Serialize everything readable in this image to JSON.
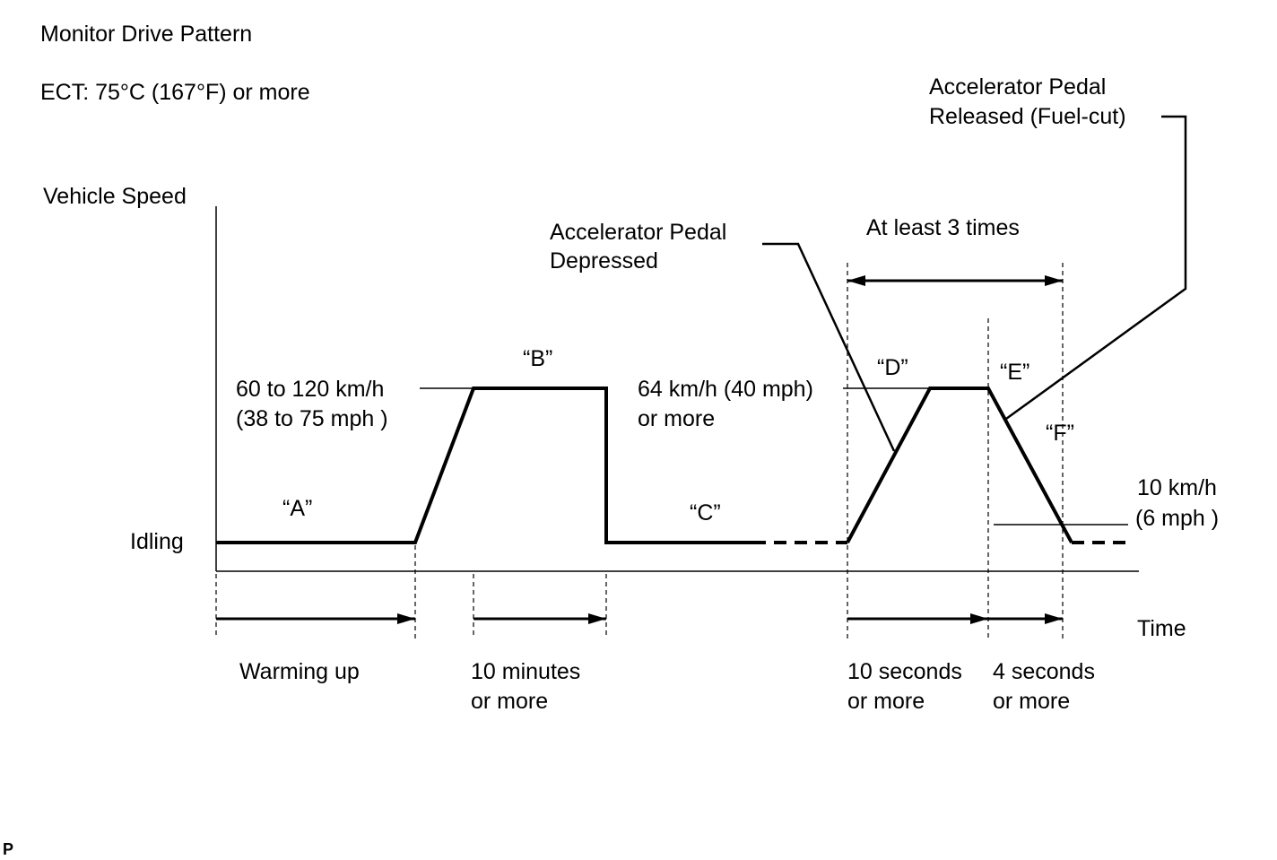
{
  "title": "Monitor Drive Pattern",
  "condition": "ECT: 75°C (167°F) or more",
  "axes": {
    "y_label": "Vehicle Speed",
    "x_label": "Time",
    "idle_label": "Idling"
  },
  "segments": {
    "a": "“A”",
    "b": "“B”",
    "c": "“C”",
    "d": "“D”",
    "e": "“E”",
    "f": "“F”"
  },
  "speeds": {
    "b_line1": "60 to 120 km/h",
    "b_line2": "(38 to 75 mph )",
    "d_line1": "64 km/h (40 mph)",
    "d_line2": "or more",
    "f_line1": "10 km/h",
    "f_line2": "(6 mph )"
  },
  "callouts": {
    "depressed_line1": "Accelerator Pedal",
    "depressed_line2": "Depressed",
    "released_line1": "Accelerator Pedal",
    "released_line2": "Released (Fuel-cut)",
    "repeat": "At least 3 times"
  },
  "durations": {
    "warmup": "Warming up",
    "b_line1": "10 minutes",
    "b_line2": "or more",
    "d_line1": "10 seconds",
    "d_line2": "or more",
    "e_line1": "4 seconds",
    "e_line2": "or more"
  },
  "footer_mark": "P"
}
